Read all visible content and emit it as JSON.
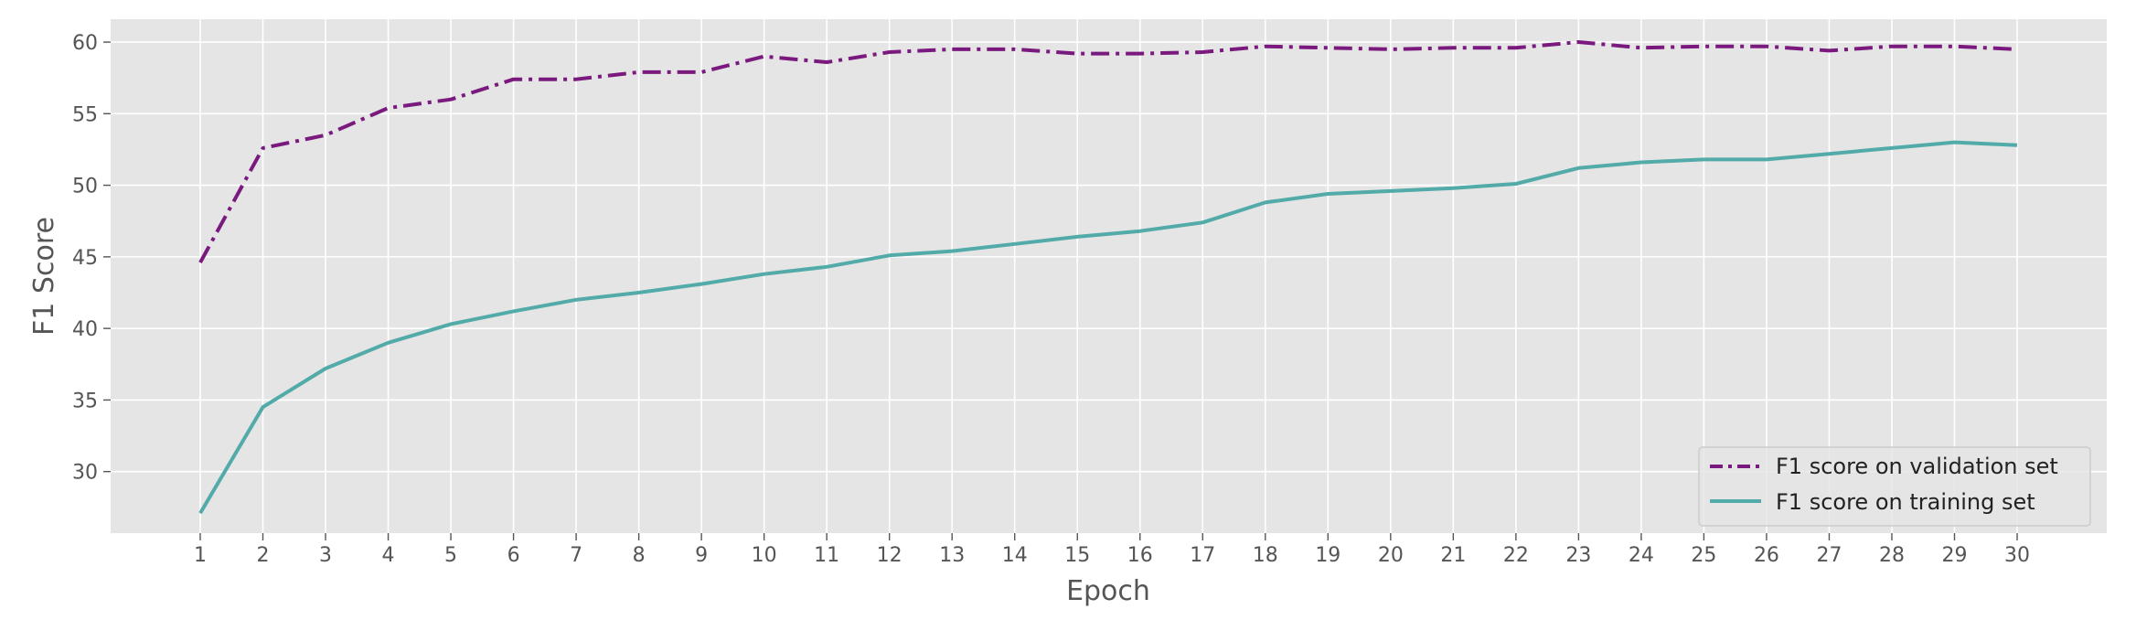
{
  "chart_data": {
    "type": "line",
    "title": "",
    "xlabel": "Epoch",
    "ylabel": "F1 Score",
    "x": [
      1,
      2,
      3,
      4,
      5,
      6,
      7,
      8,
      9,
      10,
      11,
      12,
      13,
      14,
      15,
      16,
      17,
      18,
      19,
      20,
      21,
      22,
      23,
      24,
      25,
      26,
      27,
      28,
      29,
      30
    ],
    "x_tick_labels": [
      "1",
      "2",
      "3",
      "4",
      "5",
      "6",
      "7",
      "8",
      "9",
      "10",
      "11",
      "12",
      "13",
      "14",
      "15",
      "16",
      "17",
      "18",
      "19",
      "20",
      "21",
      "22",
      "23",
      "24",
      "25",
      "26",
      "27",
      "28",
      "29",
      "30"
    ],
    "y_ticks": [
      30,
      35,
      40,
      45,
      50,
      55,
      60
    ],
    "y_tick_labels": [
      "30",
      "35",
      "40",
      "45",
      "50",
      "55",
      "60"
    ],
    "xlim": [
      -0.43,
      31.43
    ],
    "ylim": [
      25.7,
      61.6
    ],
    "grid": true,
    "legend_position": "lower-right",
    "series": [
      {
        "name": "F1 score on validation set",
        "color": "#7a1a7e",
        "style": "dashdot",
        "values": [
          44.6,
          52.6,
          53.5,
          55.4,
          56.0,
          57.4,
          57.4,
          57.9,
          57.9,
          59.0,
          58.6,
          59.3,
          59.5,
          59.5,
          59.2,
          59.2,
          59.3,
          59.7,
          59.6,
          59.5,
          59.6,
          59.6,
          60.0,
          59.6,
          59.7,
          59.7,
          59.4,
          59.7,
          59.7,
          59.5
        ]
      },
      {
        "name": "F1 score on training set",
        "color": "#52aba8",
        "style": "solid",
        "values": [
          27.1,
          34.5,
          37.2,
          39.0,
          40.3,
          41.2,
          42.0,
          42.5,
          43.1,
          43.8,
          44.3,
          45.1,
          45.4,
          45.9,
          46.4,
          46.8,
          47.4,
          48.8,
          49.4,
          49.6,
          49.8,
          50.1,
          51.2,
          51.6,
          51.8,
          51.8,
          52.2,
          52.6,
          53.0,
          52.8
        ]
      }
    ]
  }
}
